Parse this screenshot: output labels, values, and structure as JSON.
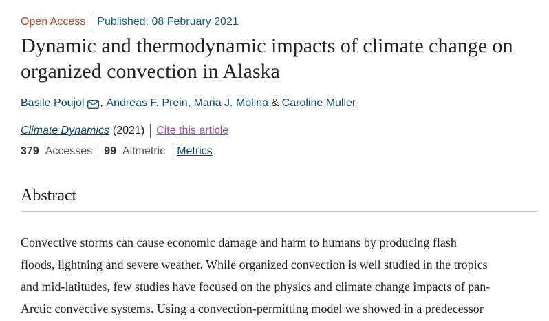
{
  "article": {
    "access": "Open Access",
    "published": "Published: 08 February 2021",
    "title": "Dynamic and thermodynamic impacts of climate change on organized convection in Alaska",
    "authors": [
      {
        "name": "Basile Poujol",
        "trailing": ","
      },
      {
        "name": "Andreas F. Prein",
        "trailing": ","
      },
      {
        "name": "Maria J. Molina",
        "trailing": "&"
      },
      {
        "name": "Caroline Muller",
        "trailing": ""
      }
    ],
    "journal": "Climate Dynamics",
    "year": "(2021)",
    "cite_label": "Cite this article"
  },
  "metrics": {
    "accesses_count": "379",
    "accesses_label": "Accesses",
    "altmetric_count": "99",
    "altmetric_label": "Altmetric",
    "metrics_link": "Metrics"
  },
  "abstract": {
    "heading": "Abstract",
    "lines": [
      "Convective storms can cause economic damage and harm to humans by producing flash",
      "floods, lightning and severe weather. While organized convection is well studied in the tropics",
      "and mid-latitudes, few studies have focused on the physics and climate change impacts of pan-",
      "Arctic convective systems. Using a convection-permitting model we showed in a predecessor"
    ]
  },
  "icons": {
    "corresponding_author": "mail-icon"
  }
}
